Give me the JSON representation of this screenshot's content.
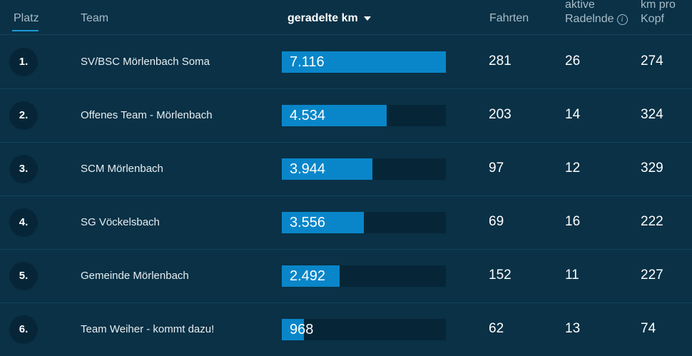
{
  "header": {
    "platz": "Platz",
    "team": "Team",
    "km": "geradelte km",
    "fahrten": "Fahrten",
    "aktive_line1": "aktive",
    "aktive_line2": "Radelnde",
    "kmkopf_line1": "km pro",
    "kmkopf_line2": "Kopf"
  },
  "rows": [
    {
      "rank": "1.",
      "team": "SV/BSC Mörlenbach Soma",
      "km": "7.116",
      "km_value": 7116,
      "fahrten": "281",
      "aktive": "26",
      "kopf": "274"
    },
    {
      "rank": "2.",
      "team": "Offenes Team - Mörlenbach",
      "km": "4.534",
      "km_value": 4534,
      "fahrten": "203",
      "aktive": "14",
      "kopf": "324"
    },
    {
      "rank": "3.",
      "team": "SCM Mörlenbach",
      "km": "3.944",
      "km_value": 3944,
      "fahrten": "97",
      "aktive": "12",
      "kopf": "329"
    },
    {
      "rank": "4.",
      "team": "SG Vöckelsbach",
      "km": "3.556",
      "km_value": 3556,
      "fahrten": "69",
      "aktive": "16",
      "kopf": "222"
    },
    {
      "rank": "5.",
      "team": "Gemeinde Mörlenbach",
      "km": "2.492",
      "km_value": 2492,
      "fahrten": "152",
      "aktive": "11",
      "kopf": "227"
    },
    {
      "rank": "6.",
      "team": "Team Weiher - kommt dazu!",
      "km": "968",
      "km_value": 968,
      "fahrten": "62",
      "aktive": "13",
      "kopf": "74"
    }
  ],
  "colors": {
    "bar": "#0986c9",
    "track": "#062638",
    "background": "#0a3146"
  }
}
